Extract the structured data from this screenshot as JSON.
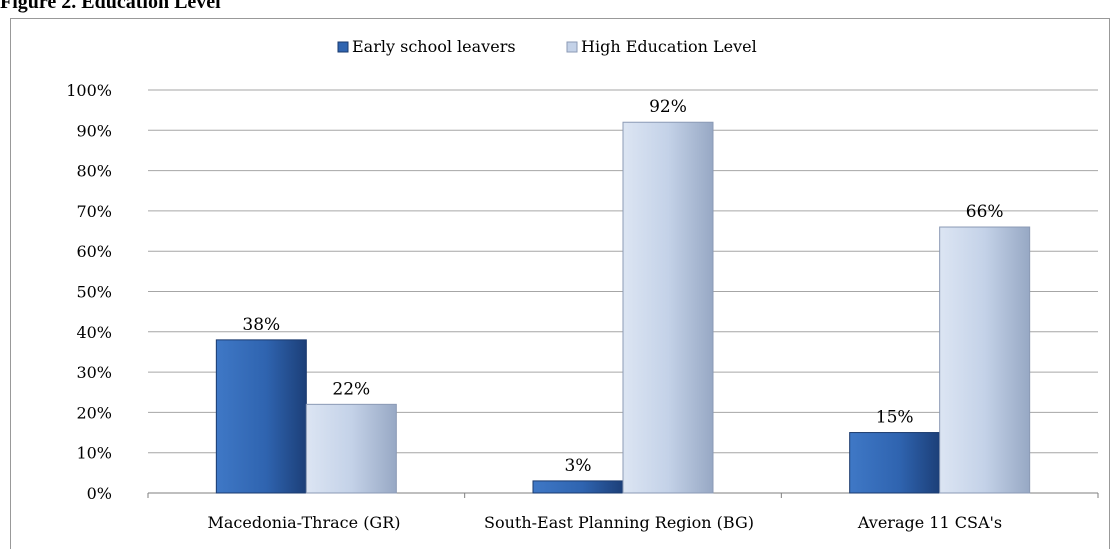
{
  "figure_title": "Figure 2. Education Level",
  "colors": {
    "early": "#2F64B0",
    "high": "#C4D2E8",
    "grid": "#A6A6A6",
    "text": "#000000"
  },
  "chart_data": {
    "type": "bar",
    "title": "",
    "xlabel": "",
    "ylabel": "",
    "categories": [
      "Macedonia-Thrace (GR)",
      "South-East Planning Region (BG)",
      "Average 11 CSA's"
    ],
    "series": [
      {
        "name": "Early school leavers",
        "values": [
          38,
          3,
          15
        ],
        "labels": [
          "38%",
          "3%",
          "15%"
        ]
      },
      {
        "name": "High Education Level",
        "values": [
          22,
          92,
          66
        ],
        "labels": [
          "22%",
          "92%",
          "66%"
        ]
      }
    ],
    "ylim": [
      0,
      100
    ],
    "yticks": [
      "0%",
      "10%",
      "20%",
      "30%",
      "40%",
      "50%",
      "60%",
      "70%",
      "80%",
      "90%",
      "100%"
    ],
    "grid": true,
    "legend_position": "top"
  }
}
